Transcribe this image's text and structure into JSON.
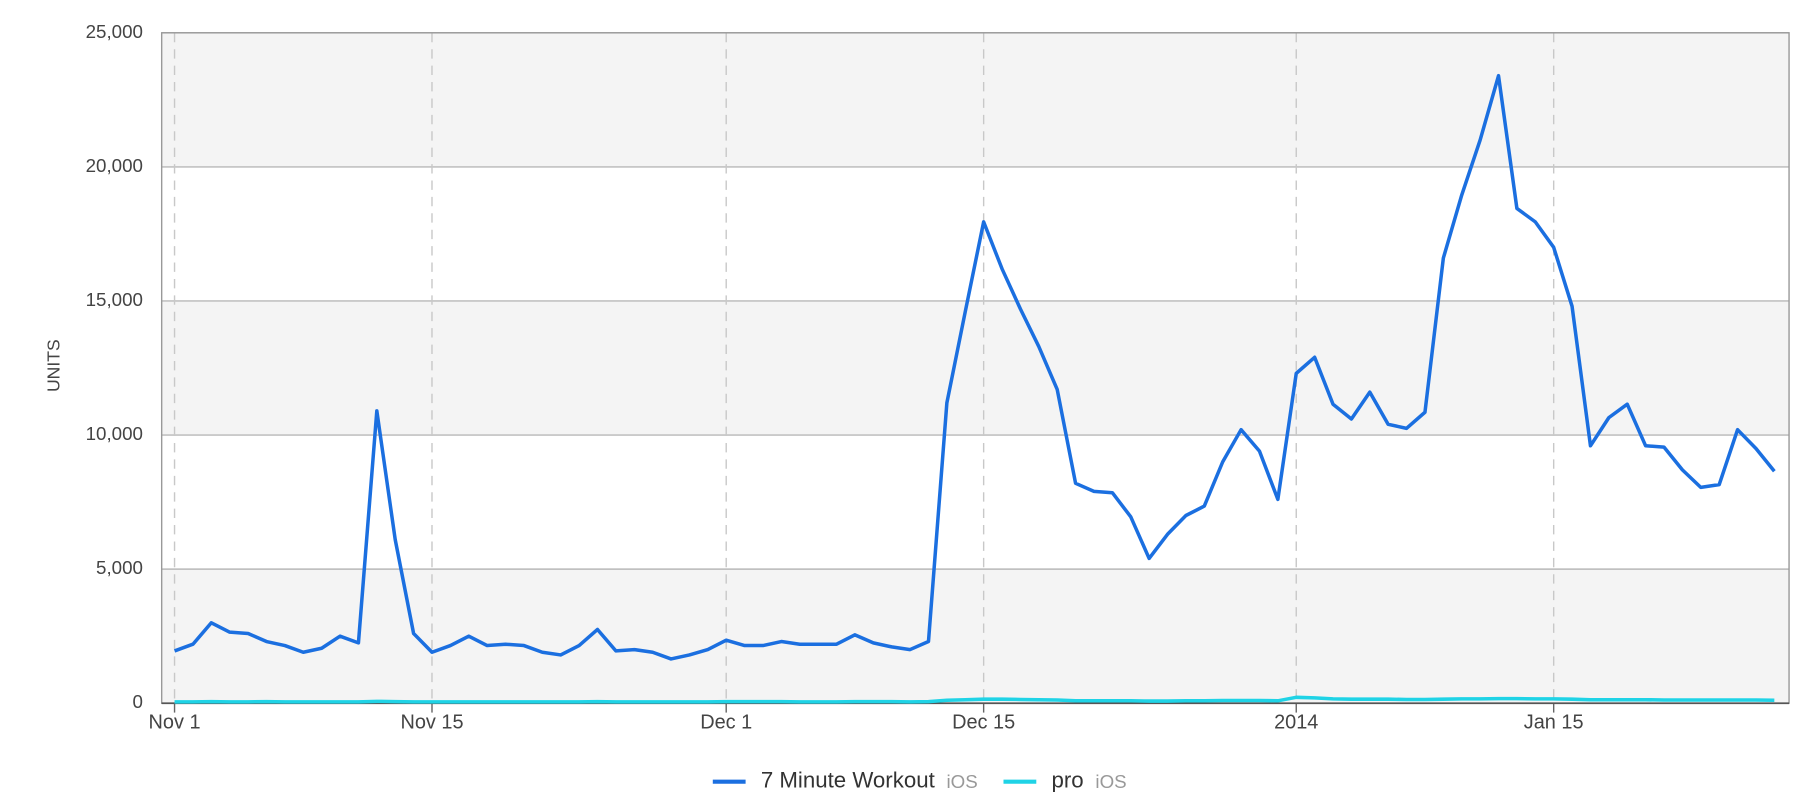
{
  "chart_data": {
    "type": "line",
    "ylabel": "UNITS",
    "x": [
      0,
      1,
      2,
      3,
      4,
      5,
      6,
      7,
      8,
      9,
      10,
      11,
      12,
      13,
      14,
      15,
      16,
      17,
      18,
      19,
      20,
      21,
      22,
      23,
      24,
      25,
      26,
      27,
      28,
      29,
      30,
      31,
      32,
      33,
      34,
      35,
      36,
      37,
      38,
      39,
      40,
      41,
      42,
      43,
      44,
      45,
      46,
      47,
      48,
      49,
      50,
      51,
      52,
      53,
      54,
      55,
      56,
      57,
      58,
      59,
      60,
      61,
      62,
      63,
      64,
      65,
      66,
      67,
      68,
      69,
      70,
      71,
      72,
      73,
      74,
      75,
      76,
      77,
      78,
      79,
      80,
      81,
      82,
      83,
      84,
      85,
      86,
      87
    ],
    "xlim": [
      -0.7,
      87.8
    ],
    "xticks": [
      {
        "value": 0,
        "label": "Nov 1"
      },
      {
        "value": 14,
        "label": "Nov 15"
      },
      {
        "value": 30,
        "label": "Dec 1"
      },
      {
        "value": 44,
        "label": "Dec 15"
      },
      {
        "value": 61,
        "label": "2014"
      },
      {
        "value": 75,
        "label": "Jan 15"
      }
    ],
    "ylim": [
      0,
      25000
    ],
    "yticks": [
      0,
      {
        "value": 5000,
        "label": "5,000"
      },
      {
        "value": 10000,
        "label": "10,000"
      },
      {
        "value": 15000,
        "label": "15,000"
      },
      {
        "value": 20000,
        "label": "20,000"
      },
      {
        "value": 25000,
        "label": "25,000"
      }
    ],
    "grid": true,
    "legend": "bottom",
    "series": [
      {
        "name": "7 Minute Workout",
        "platform": "iOS",
        "color": "#1b6fe0",
        "values": [
          1950,
          2200,
          3000,
          2650,
          2600,
          2300,
          2150,
          1900,
          2050,
          2500,
          2250,
          10900,
          6100,
          2600,
          1900,
          2150,
          2500,
          2150,
          2200,
          2150,
          1900,
          1800,
          2150,
          2750,
          1950,
          2000,
          1900,
          1650,
          1800,
          2000,
          2350,
          2150,
          2150,
          2300,
          2200,
          2200,
          2200,
          2550,
          2250,
          2100,
          2000,
          2300,
          11200,
          14600,
          17950,
          16200,
          14700,
          13300,
          11700,
          8200,
          7900,
          7850,
          6950,
          5400,
          6300,
          7000,
          7350,
          9000,
          10200,
          9400,
          7600,
          12300,
          12900,
          11150,
          10600,
          11600,
          10400,
          10250,
          10850,
          16600,
          18950,
          21000,
          23400,
          18450,
          17950,
          17000,
          14800,
          9600,
          10650,
          11150,
          9600,
          9550,
          8700,
          8050,
          8150,
          10200,
          9500,
          8650
        ]
      },
      {
        "name": "pro",
        "platform": "iOS",
        "color": "#1fd3e6",
        "values": [
          50,
          50,
          60,
          50,
          50,
          60,
          50,
          50,
          50,
          50,
          50,
          70,
          60,
          50,
          50,
          50,
          50,
          50,
          50,
          50,
          50,
          50,
          50,
          60,
          50,
          50,
          50,
          50,
          50,
          50,
          60,
          60,
          60,
          60,
          50,
          50,
          50,
          60,
          60,
          60,
          50,
          60,
          110,
          130,
          150,
          150,
          140,
          130,
          120,
          90,
          90,
          90,
          90,
          80,
          80,
          90,
          90,
          100,
          100,
          100,
          90,
          220,
          200,
          160,
          150,
          150,
          150,
          140,
          140,
          150,
          160,
          160,
          170,
          170,
          160,
          160,
          150,
          130,
          130,
          130,
          130,
          120,
          120,
          120,
          120,
          120,
          120,
          110
        ]
      }
    ]
  }
}
